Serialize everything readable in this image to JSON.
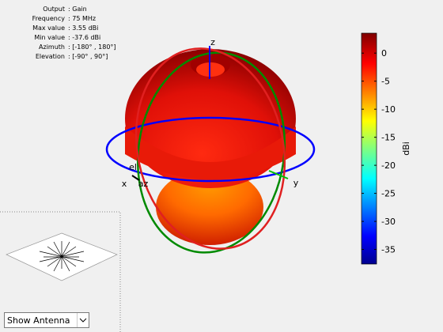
{
  "info": [
    {
      "label": "Output",
      "value": ": Gain"
    },
    {
      "label": "Frequency",
      "value": ": 75 MHz"
    },
    {
      "label": "Max value",
      "value": ": 3.55 dBi"
    },
    {
      "label": "Min value",
      "value": ": -37.6 dBi"
    },
    {
      "label": "Azimuth",
      "value": ": [-180° , 180°]"
    },
    {
      "label": "Elevation",
      "value": ": [-90° , 90°]"
    }
  ],
  "axes": {
    "x": "x",
    "y": "y",
    "z": "z",
    "az": "az",
    "el": "el"
  },
  "colorbar": {
    "label": "dBi",
    "lim": [
      -37.6,
      3.55
    ],
    "ticks": [
      0,
      -5,
      -10,
      -15,
      -20,
      -25,
      -30,
      -35
    ]
  },
  "control": {
    "selected": "Show Antenna"
  }
}
